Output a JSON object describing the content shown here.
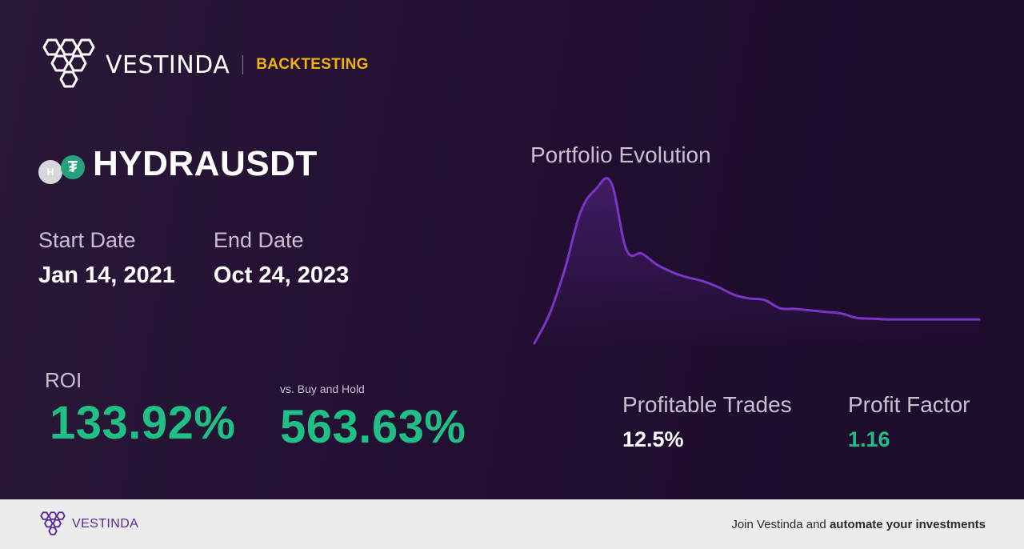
{
  "header": {
    "brand": "VESTINDA",
    "tag": "BACKTESTING",
    "tag_color": "#f0b30a"
  },
  "pair": {
    "name": "HYDRAUSDT",
    "base_icon": "H",
    "quote_icon": "₮"
  },
  "dates": {
    "start_label": "Start Date",
    "start_value": "Jan 14, 2021",
    "end_label": "End Date",
    "end_value": "Oct 24, 2023"
  },
  "roi": {
    "label": "ROI",
    "value": "133.92%"
  },
  "buy_hold": {
    "label": "vs. Buy and Hold",
    "value": "563.63%"
  },
  "chart": {
    "title": "Portfolio Evolution"
  },
  "chart_data": {
    "type": "line",
    "title": "Portfolio Evolution",
    "series": [
      {
        "color": "#7a35c8",
        "values": [
          0,
          40,
          100,
          175,
          206,
          215,
          125,
          120,
          105,
          95,
          88,
          83,
          75,
          65,
          60,
          58,
          47,
          46,
          44,
          42,
          40,
          34,
          33,
          32,
          32,
          32,
          32,
          32,
          32,
          32
        ]
      }
    ]
  },
  "stats": {
    "profitable_label": "Profitable Trades",
    "profitable_value": "12.5%",
    "profit_factor_label": "Profit Factor",
    "profit_factor_value": "1.16"
  },
  "colors": {
    "positive": "#1fbf85",
    "neutral": "#ffffff"
  },
  "footer": {
    "brand": "VESTINDA",
    "cta_prefix": "Join Vestinda and ",
    "cta_bold": "automate your investments"
  }
}
